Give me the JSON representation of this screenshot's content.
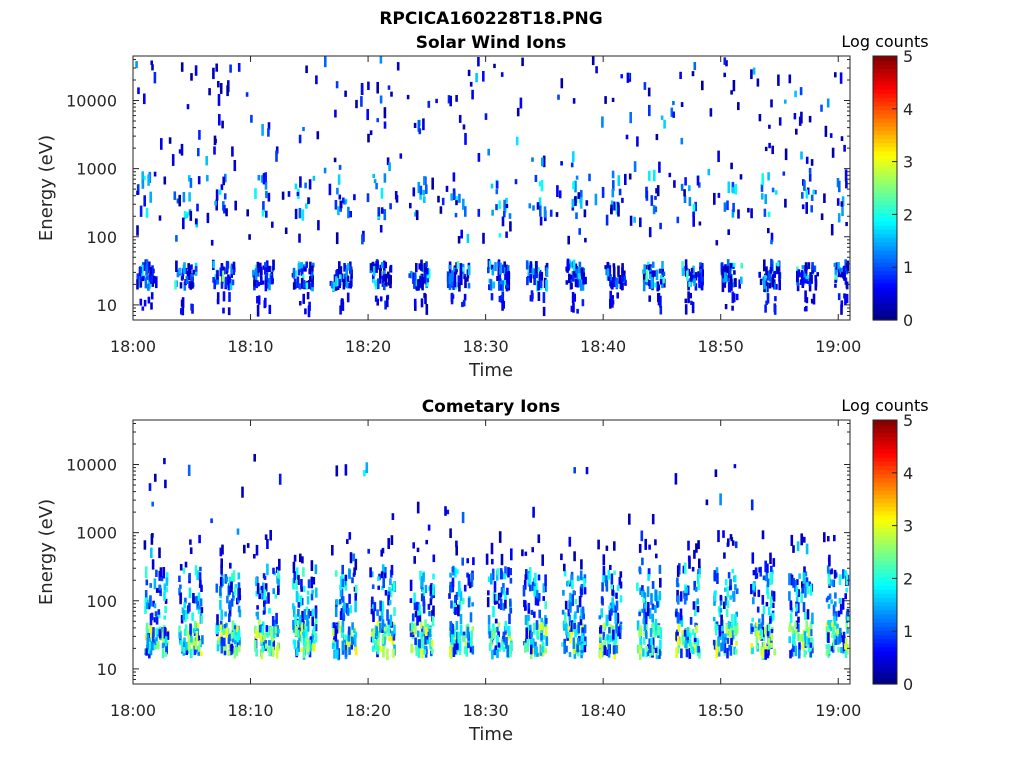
{
  "figure": {
    "title": "RPCICA160228T18.PNG"
  },
  "chart_data": [
    {
      "type": "heatmap",
      "title": "Solar Wind Ions",
      "xlabel": "Time",
      "ylabel": "Energy (eV)",
      "x_range_minutes": [
        0,
        61
      ],
      "x_ticks": [
        "18:00",
        "18:10",
        "18:20",
        "18:30",
        "18:40",
        "18:50",
        "19:00"
      ],
      "y_scale": "log",
      "y_range_eV": [
        6,
        45000
      ],
      "y_ticks": [
        "10",
        "100",
        "1000",
        "10000"
      ],
      "colorbar": {
        "title": "Log counts",
        "range": [
          0,
          5
        ],
        "ticks": [
          "0",
          "1",
          "2",
          "3",
          "4",
          "5"
        ],
        "colormap": "jet"
      },
      "band_centers_minutes": [
        1.0,
        4.4,
        7.6,
        11.0,
        14.4,
        17.6,
        21.0,
        24.3,
        27.6,
        31.0,
        34.3,
        37.6,
        40.9,
        44.2,
        47.5,
        50.8,
        54.1,
        57.3,
        60.5
      ],
      "low_energy_eV": [
        18,
        40
      ],
      "high_energy_eV": [
        120,
        15000
      ],
      "peak_log_counts": 2.4
    },
    {
      "type": "heatmap",
      "title": "Cometary Ions",
      "xlabel": "Time",
      "ylabel": "Energy (eV)",
      "x_range_minutes": [
        0,
        61
      ],
      "x_ticks": [
        "18:00",
        "18:10",
        "18:20",
        "18:30",
        "18:40",
        "18:50",
        "19:00"
      ],
      "y_scale": "log",
      "y_range_eV": [
        6,
        45000
      ],
      "y_ticks": [
        "10",
        "100",
        "1000",
        "10000"
      ],
      "colorbar": {
        "title": "Log counts",
        "range": [
          0,
          5
        ],
        "ticks": [
          "0",
          "1",
          "2",
          "3",
          "4",
          "5"
        ],
        "colormap": "jet"
      },
      "band_centers_minutes": [
        1.9,
        4.8,
        8.0,
        11.3,
        14.5,
        17.9,
        21.2,
        24.5,
        27.8,
        31.1,
        34.1,
        37.4,
        40.6,
        43.8,
        47.1,
        50.3,
        53.5,
        56.7,
        59.9
      ],
      "core_energy_eV": [
        16,
        45
      ],
      "upper_energy_eV": [
        50,
        300
      ],
      "peak_log_counts": 3.2
    }
  ]
}
